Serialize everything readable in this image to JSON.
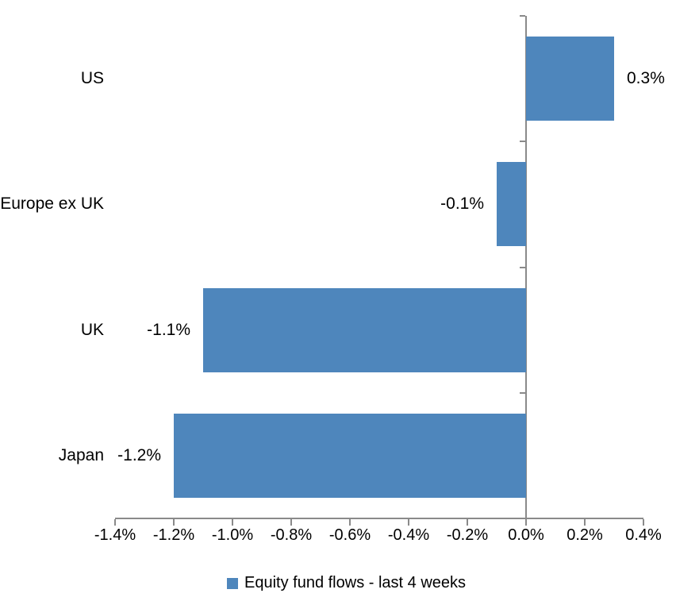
{
  "chart_data": {
    "type": "bar",
    "orientation": "horizontal",
    "title": "",
    "xlabel": "",
    "ylabel": "",
    "categories": [
      "US",
      "Europe ex UK",
      "UK",
      "Japan"
    ],
    "series": [
      {
        "name": "Equity fund flows - last 4 weeks",
        "values": [
          0.3,
          -0.1,
          -1.1,
          -1.2
        ],
        "labels": [
          "0.3%",
          "-0.1%",
          "-1.1%",
          "-1.2%"
        ]
      }
    ],
    "xlim": [
      -1.4,
      0.4
    ],
    "xticks": [
      -1.4,
      -1.2,
      -1.0,
      -0.8,
      -0.6,
      -0.4,
      -0.2,
      0.0,
      0.2,
      0.4
    ],
    "xtick_labels": [
      "-1.4%",
      "-1.2%",
      "-1.0%",
      "-0.8%",
      "-0.6%",
      "-0.4%",
      "-0.2%",
      "0.0%",
      "0.2%",
      "0.4%"
    ],
    "grid": false,
    "legend": {
      "label": "Equity fund flows - last 4 weeks",
      "position": "bottom-center"
    },
    "colors": {
      "bar": "#4E86BC",
      "axis": "#8A8A8A",
      "text": "#000000"
    }
  }
}
